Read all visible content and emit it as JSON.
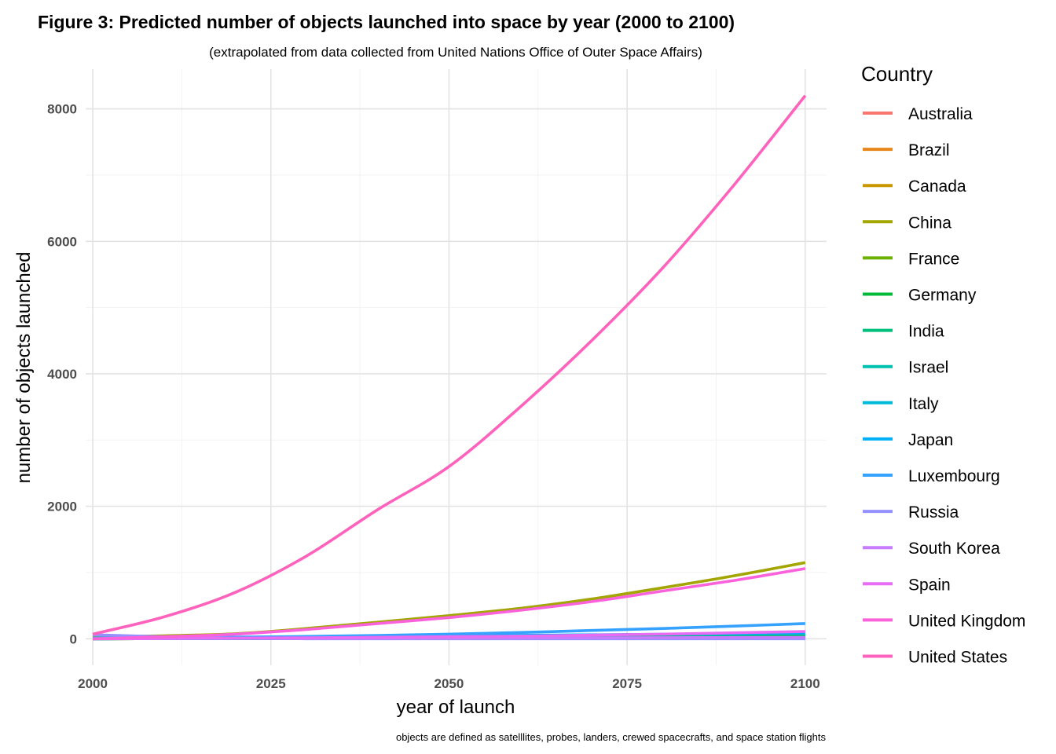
{
  "chart_data": {
    "type": "line",
    "title": "Figure 3: Predicted number of objects launched into space by year (2000 to 2100)",
    "subtitle": "(extrapolated from data collected from United Nations Office of Outer Space Affairs)",
    "caption": "objects are defined as satelllites, probes, landers, crewed spacecrafts, and space station flights",
    "xlabel": "year of launch",
    "ylabel": "number of objects launched",
    "xlim": [
      1999,
      2103
    ],
    "ylim": [
      -400,
      8600
    ],
    "x_ticks": [
      2000,
      2025,
      2050,
      2075,
      2100
    ],
    "y_ticks": [
      0,
      2000,
      4000,
      6000,
      8000
    ],
    "grid": true,
    "legend_title": "Country",
    "legend_position": "right",
    "x": [
      2000,
      2010,
      2020,
      2030,
      2040,
      2050,
      2060,
      2070,
      2080,
      2090,
      2100
    ],
    "series": [
      {
        "name": "Australia",
        "color": "#F8766D",
        "values": [
          0,
          1,
          2,
          3,
          4,
          5,
          6,
          7,
          8,
          9,
          10
        ]
      },
      {
        "name": "Brazil",
        "color": "#E7861B",
        "values": [
          0,
          1,
          2,
          3,
          4,
          5,
          6,
          7,
          8,
          9,
          10
        ]
      },
      {
        "name": "Canada",
        "color": "#C99800",
        "values": [
          0,
          2,
          4,
          6,
          8,
          10,
          12,
          14,
          16,
          18,
          20
        ]
      },
      {
        "name": "China",
        "color": "#A3A500",
        "values": [
          30,
          45,
          75,
          155,
          250,
          350,
          460,
          600,
          770,
          950,
          1150
        ]
      },
      {
        "name": "France",
        "color": "#6BB100",
        "values": [
          10,
          12,
          15,
          18,
          22,
          26,
          30,
          34,
          38,
          42,
          45
        ]
      },
      {
        "name": "Germany",
        "color": "#00BA38",
        "values": [
          0,
          2,
          4,
          6,
          8,
          10,
          12,
          14,
          16,
          18,
          20
        ]
      },
      {
        "name": "India",
        "color": "#00BF7D",
        "values": [
          0,
          3,
          6,
          10,
          14,
          18,
          22,
          26,
          30,
          35,
          40
        ]
      },
      {
        "name": "Israel",
        "color": "#00C0AF",
        "values": [
          0,
          1,
          2,
          3,
          4,
          5,
          6,
          7,
          8,
          9,
          10
        ]
      },
      {
        "name": "Italy",
        "color": "#00BCD8",
        "values": [
          0,
          1,
          2,
          3,
          4,
          5,
          6,
          7,
          8,
          9,
          10
        ]
      },
      {
        "name": "Japan",
        "color": "#00B0F6",
        "values": [
          10,
          15,
          20,
          28,
          36,
          44,
          52,
          60,
          68,
          76,
          85
        ]
      },
      {
        "name": "Luxembourg",
        "color": "#35A2FF",
        "values": [
          10,
          15,
          25,
          35,
          50,
          70,
          95,
          125,
          155,
          190,
          230
        ]
      },
      {
        "name": "Russia",
        "color": "#9590FF",
        "values": [
          60,
          30,
          10,
          0,
          0,
          0,
          0,
          0,
          0,
          0,
          0
        ]
      },
      {
        "name": "South Korea",
        "color": "#C77CFF",
        "values": [
          0,
          2,
          4,
          6,
          8,
          10,
          12,
          14,
          16,
          18,
          20
        ]
      },
      {
        "name": "Spain",
        "color": "#E76BF3",
        "values": [
          0,
          5,
          10,
          15,
          22,
          30,
          40,
          55,
          70,
          90,
          110
        ]
      },
      {
        "name": "United Kingdom",
        "color": "#FA62DB",
        "values": [
          0,
          30,
          70,
          140,
          230,
          320,
          430,
          560,
          720,
          880,
          1060
        ]
      },
      {
        "name": "United States",
        "color": "#FF62BC",
        "values": [
          70,
          330,
          700,
          1250,
          1950,
          2600,
          3500,
          4500,
          5600,
          6850,
          8200
        ]
      }
    ]
  }
}
